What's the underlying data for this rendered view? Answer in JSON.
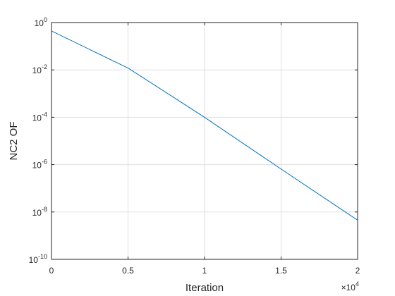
{
  "chart_data": {
    "type": "line",
    "x_label": "Iteration",
    "y_label": "NC2 OF",
    "x_multiplier": "×10^4",
    "x": [
      0,
      5000,
      10000,
      15000,
      20000
    ],
    "series": [
      {
        "name": "NC2 OF",
        "color": "#0072bd",
        "values": [
          0.44,
          0.012,
          0.0001,
          6.5e-07,
          4.5e-09
        ]
      }
    ],
    "xlim": [
      0,
      20000
    ],
    "xticks": [
      {
        "value": 0,
        "label": "0"
      },
      {
        "value": 5000,
        "label": "0.5"
      },
      {
        "value": 10000,
        "label": "1"
      },
      {
        "value": 15000,
        "label": "1.5"
      },
      {
        "value": 20000,
        "label": "2"
      }
    ],
    "ylim": [
      1e-10,
      1
    ],
    "yticks": [
      {
        "value": 1e-10,
        "label": "10^-10"
      },
      {
        "value": 1e-08,
        "label": "10^-8"
      },
      {
        "value": 1e-06,
        "label": "10^-6"
      },
      {
        "value": 0.0001,
        "label": "10^-4"
      },
      {
        "value": 0.01,
        "label": "10^-2"
      },
      {
        "value": 1,
        "label": "10^0"
      }
    ],
    "ylog": true,
    "grid": true
  }
}
